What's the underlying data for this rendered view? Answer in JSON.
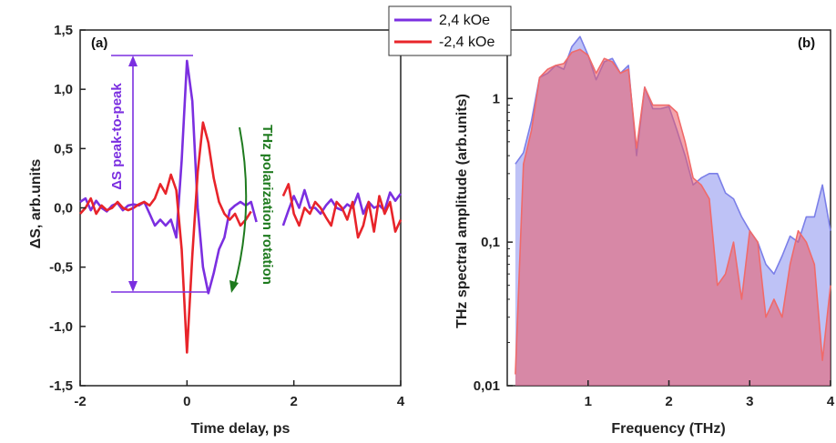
{
  "chart_data": [
    {
      "type": "line",
      "panel_label": "(a)",
      "xlabel": "Time delay, ps",
      "ylabel": "ΔS, arb.units",
      "xlim": [
        -2,
        4
      ],
      "ylim": [
        -1.5,
        1.5
      ],
      "x_ticks": [
        -2,
        0,
        2,
        4
      ],
      "x_tick_labels": [
        "-2",
        "0",
        "2",
        "4"
      ],
      "y_ticks": [
        1.5,
        1.0,
        0.5,
        0.0,
        -0.5,
        -1.0,
        -1.5
      ],
      "y_tick_labels": [
        "1,5",
        "1,0",
        "0,5",
        "0,0",
        "-0,5",
        "-1,0",
        "-1,5"
      ],
      "annotations": {
        "peak_to_peak": "ΔS peak-to-peak",
        "rotation": "THz polarization rotation"
      },
      "series": [
        {
          "name": "2,4 kOe",
          "color": "#7b2fe0",
          "x": [
            -2.0,
            -1.9,
            -1.8,
            -1.7,
            -1.6,
            -1.5,
            -1.4,
            -1.3,
            -1.2,
            -1.1,
            -1.0,
            -0.9,
            -0.8,
            -0.7,
            -0.6,
            -0.5,
            -0.4,
            -0.3,
            -0.2,
            -0.1,
            0.0,
            0.1,
            0.2,
            0.3,
            0.4,
            0.5,
            0.6,
            0.7,
            0.8,
            0.9,
            1.0,
            1.1,
            1.2,
            1.3
          ],
          "y": [
            0.05,
            0.08,
            -0.02,
            0.06,
            0.0,
            -0.03,
            0.02,
            0.04,
            -0.02,
            0.02,
            0.03,
            0.02,
            0.05,
            -0.05,
            -0.15,
            -0.1,
            -0.15,
            -0.1,
            -0.25,
            0.4,
            1.24,
            0.9,
            0.0,
            -0.5,
            -0.72,
            -0.55,
            -0.35,
            -0.25,
            -0.02,
            0.02,
            0.05,
            0.02,
            0.05,
            -0.12
          ]
        },
        {
          "name": "2,4 kOe",
          "color": "#7b2fe0",
          "x": [
            1.8,
            1.9,
            2.0,
            2.1,
            2.2,
            2.3,
            2.4,
            2.5,
            2.6,
            2.7,
            2.8,
            2.9,
            3.0,
            3.1,
            3.2,
            3.3,
            3.4,
            3.5,
            3.6,
            3.7,
            3.8,
            3.9,
            4.0
          ],
          "y": [
            -0.15,
            -0.02,
            0.1,
            0.0,
            0.15,
            0.0,
            0.0,
            -0.05,
            0.02,
            0.07,
            0.0,
            -0.02,
            0.03,
            0.0,
            0.12,
            -0.05,
            0.05,
            0.0,
            0.02,
            -0.02,
            0.13,
            0.06,
            0.12
          ]
        },
        {
          "name": "-2,4 kOe",
          "color": "#e8242a",
          "x": [
            -2.0,
            -1.9,
            -1.8,
            -1.7,
            -1.6,
            -1.5,
            -1.4,
            -1.3,
            -1.2,
            -1.1,
            -1.0,
            -0.9,
            -0.8,
            -0.7,
            -0.6,
            -0.5,
            -0.4,
            -0.3,
            -0.2,
            -0.1,
            0.0,
            0.1,
            0.2,
            0.3,
            0.4,
            0.5,
            0.6,
            0.7,
            0.8,
            0.9,
            1.0,
            1.1,
            1.2
          ],
          "y": [
            -0.05,
            0.0,
            0.08,
            -0.05,
            0.02,
            -0.02,
            0.0,
            0.05,
            0.0,
            -0.02,
            0.0,
            0.03,
            0.05,
            0.02,
            0.08,
            0.2,
            0.12,
            0.28,
            0.15,
            -0.35,
            -1.22,
            -0.4,
            0.3,
            0.72,
            0.55,
            0.25,
            0.05,
            -0.05,
            -0.1,
            -0.05,
            -0.15,
            -0.1,
            -0.03
          ]
        },
        {
          "name": "-2,4 kOe",
          "color": "#e8242a",
          "x": [
            1.8,
            1.9,
            2.0,
            2.1,
            2.2,
            2.3,
            2.4,
            2.5,
            2.6,
            2.7,
            2.8,
            2.9,
            3.0,
            3.1,
            3.2,
            3.3,
            3.4,
            3.5,
            3.6,
            3.7,
            3.8,
            3.9,
            4.0
          ],
          "y": [
            0.1,
            0.2,
            -0.05,
            -0.15,
            0.0,
            -0.05,
            0.05,
            0.0,
            -0.08,
            -0.15,
            0.05,
            0.0,
            -0.1,
            0.05,
            -0.25,
            -0.15,
            0.05,
            -0.2,
            0.1,
            -0.05,
            0.05,
            -0.2,
            -0.1
          ]
        }
      ],
      "legend": [
        {
          "label": "2,4 kOe",
          "color": "#7b2fe0"
        },
        {
          "label": "-2,4 kOe",
          "color": "#e8242a"
        }
      ]
    },
    {
      "type": "area",
      "panel_label": "(b)",
      "xlabel": "Frequency (THz)",
      "ylabel": "THz spectral amplitude (arb.units)",
      "xlim": [
        0,
        4
      ],
      "ylim": [
        0.01,
        3
      ],
      "y_scale": "log",
      "x_ticks": [
        1,
        2,
        3,
        4
      ],
      "x_tick_labels": [
        "1",
        "2",
        "3",
        "4"
      ],
      "y_ticks": [
        1,
        0.1,
        0.01
      ],
      "y_tick_labels": [
        "1",
        "0,1",
        "0,01"
      ],
      "series": [
        {
          "name": "2,4 kOe",
          "color": "#7b7fe8",
          "x": [
            0.1,
            0.2,
            0.3,
            0.4,
            0.5,
            0.6,
            0.7,
            0.8,
            0.9,
            1.0,
            1.1,
            1.2,
            1.3,
            1.4,
            1.5,
            1.6,
            1.7,
            1.8,
            1.9,
            2.0,
            2.1,
            2.2,
            2.3,
            2.4,
            2.5,
            2.6,
            2.7,
            2.8,
            2.9,
            3.0,
            3.1,
            3.2,
            3.3,
            3.4,
            3.5,
            3.6,
            3.7,
            3.8,
            3.9,
            4.0
          ],
          "y": [
            0.35,
            0.42,
            0.7,
            1.4,
            1.5,
            1.7,
            1.6,
            2.3,
            2.7,
            2.0,
            1.35,
            1.8,
            1.9,
            1.5,
            1.7,
            0.4,
            1.2,
            0.85,
            0.85,
            0.88,
            0.6,
            0.4,
            0.25,
            0.28,
            0.3,
            0.3,
            0.22,
            0.2,
            0.15,
            0.12,
            0.1,
            0.07,
            0.06,
            0.08,
            0.11,
            0.1,
            0.15,
            0.15,
            0.25,
            0.12
          ]
        },
        {
          "name": "-2,4 kOe",
          "color": "#f06a6a",
          "x": [
            0.1,
            0.2,
            0.3,
            0.4,
            0.5,
            0.6,
            0.7,
            0.8,
            0.9,
            1.0,
            1.1,
            1.2,
            1.3,
            1.4,
            1.5,
            1.6,
            1.7,
            1.8,
            1.9,
            2.0,
            2.1,
            2.2,
            2.3,
            2.4,
            2.5,
            2.6,
            2.7,
            2.8,
            2.9,
            3.0,
            3.1,
            3.2,
            3.3,
            3.4,
            3.5,
            3.6,
            3.7,
            3.8,
            3.9,
            4.0
          ],
          "y": [
            0.012,
            0.35,
            0.6,
            1.4,
            1.6,
            1.7,
            1.75,
            2.1,
            2.2,
            2.0,
            1.5,
            1.9,
            1.8,
            1.5,
            1.6,
            0.45,
            1.2,
            0.9,
            0.9,
            0.9,
            0.8,
            0.5,
            0.28,
            0.25,
            0.2,
            0.05,
            0.06,
            0.1,
            0.04,
            0.12,
            0.1,
            0.03,
            0.04,
            0.03,
            0.07,
            0.12,
            0.1,
            0.07,
            0.015,
            0.05
          ]
        }
      ]
    }
  ]
}
